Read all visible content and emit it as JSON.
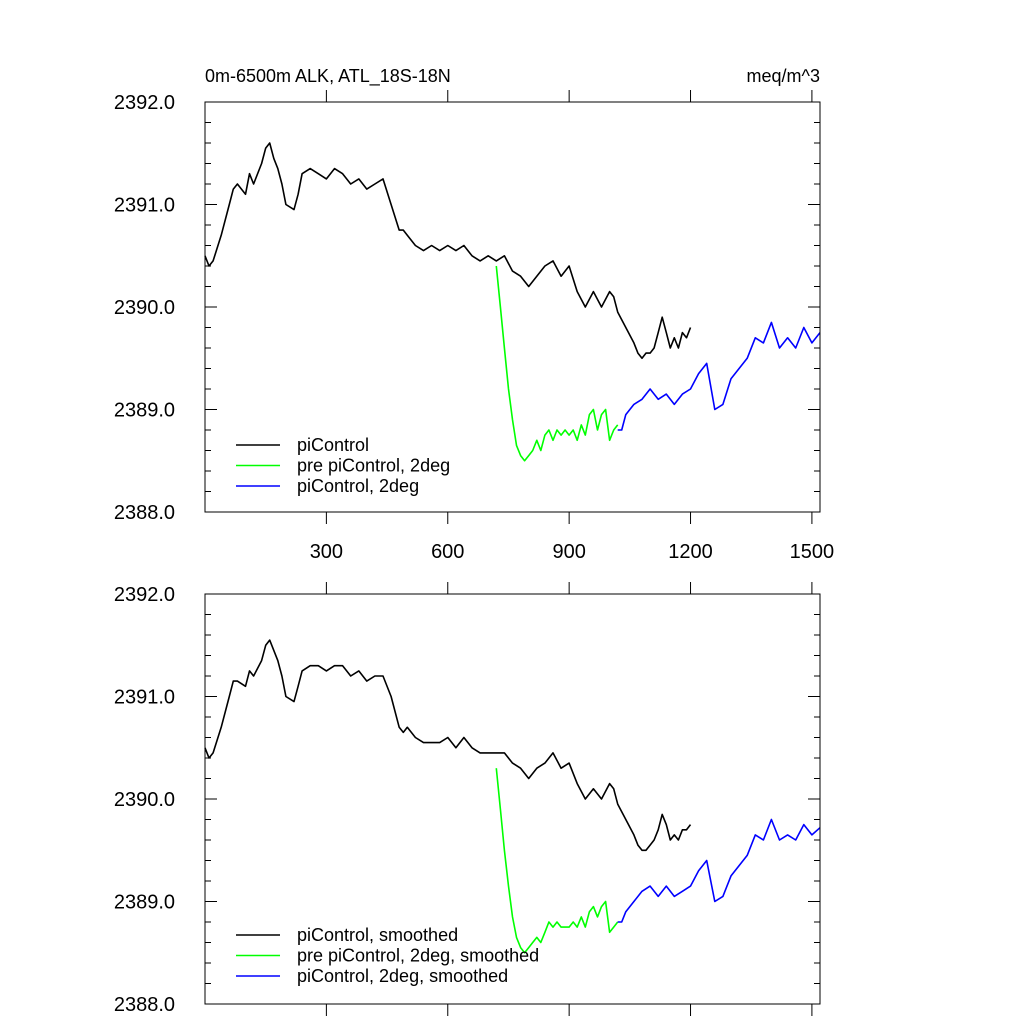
{
  "chart_data": [
    {
      "type": "line",
      "title_left": "0m-6500m ALK, ATL_18S-18N",
      "title_right": "meq/m^3",
      "xlim": [
        0,
        1520
      ],
      "ylim": [
        2388.0,
        2392.0
      ],
      "xticks": [
        300,
        600,
        900,
        1200,
        1500
      ],
      "xtick_labels": [
        "300",
        "600",
        "900",
        "1200",
        "1500"
      ],
      "yticks": [
        2388.0,
        2389.0,
        2390.0,
        2391.0,
        2392.0
      ],
      "ytick_labels": [
        "2388.0",
        "2389.0",
        "2390.0",
        "2391.0",
        "2392.0"
      ],
      "legend_position": "bottom-left",
      "series": [
        {
          "name": "piControl",
          "color": "#000000",
          "x": [
            0,
            10,
            20,
            40,
            60,
            70,
            80,
            100,
            110,
            120,
            140,
            150,
            160,
            170,
            180,
            190,
            200,
            220,
            230,
            240,
            260,
            280,
            300,
            320,
            340,
            360,
            380,
            400,
            420,
            440,
            460,
            480,
            490,
            500,
            520,
            540,
            560,
            580,
            600,
            620,
            640,
            660,
            680,
            700,
            720,
            740,
            760,
            780,
            800,
            820,
            840,
            860,
            880,
            900,
            920,
            940,
            960,
            980,
            1000,
            1010,
            1020,
            1040,
            1060,
            1070,
            1080,
            1090,
            1100,
            1110,
            1120,
            1130,
            1140,
            1150,
            1160,
            1170,
            1180,
            1190,
            1200
          ],
          "y": [
            2390.5,
            2390.4,
            2390.45,
            2390.7,
            2391.0,
            2391.15,
            2391.2,
            2391.1,
            2391.3,
            2391.2,
            2391.4,
            2391.55,
            2391.6,
            2391.45,
            2391.35,
            2391.2,
            2391.0,
            2390.95,
            2391.1,
            2391.3,
            2391.35,
            2391.3,
            2391.25,
            2391.35,
            2391.3,
            2391.2,
            2391.25,
            2391.15,
            2391.2,
            2391.25,
            2391.0,
            2390.75,
            2390.75,
            2390.7,
            2390.6,
            2390.55,
            2390.6,
            2390.55,
            2390.6,
            2390.55,
            2390.6,
            2390.5,
            2390.45,
            2390.5,
            2390.45,
            2390.5,
            2390.35,
            2390.3,
            2390.2,
            2390.3,
            2390.4,
            2390.45,
            2390.3,
            2390.4,
            2390.15,
            2390.0,
            2390.15,
            2390.0,
            2390.15,
            2390.1,
            2389.95,
            2389.8,
            2389.65,
            2389.55,
            2389.5,
            2389.55,
            2389.55,
            2389.6,
            2389.75,
            2389.9,
            2389.75,
            2389.6,
            2389.7,
            2389.6,
            2389.75,
            2389.7,
            2389.8
          ]
        },
        {
          "name": "pre piControl, 2deg",
          "color": "#00ff00",
          "x": [
            720,
            730,
            740,
            750,
            760,
            770,
            780,
            790,
            800,
            810,
            820,
            830,
            840,
            850,
            860,
            870,
            880,
            890,
            900,
            910,
            920,
            930,
            940,
            950,
            960,
            970,
            980,
            990,
            1000,
            1010,
            1020
          ],
          "y": [
            2390.4,
            2390.0,
            2389.6,
            2389.2,
            2388.9,
            2388.65,
            2388.55,
            2388.5,
            2388.55,
            2388.6,
            2388.7,
            2388.6,
            2388.75,
            2388.8,
            2388.7,
            2388.8,
            2388.75,
            2388.8,
            2388.75,
            2388.8,
            2388.7,
            2388.85,
            2388.75,
            2388.95,
            2389.0,
            2388.8,
            2388.95,
            2389.0,
            2388.7,
            2388.8,
            2388.85
          ]
        },
        {
          "name": "piControl, 2deg",
          "color": "#0000ff",
          "x": [
            1020,
            1030,
            1040,
            1060,
            1080,
            1100,
            1120,
            1140,
            1160,
            1180,
            1200,
            1220,
            1240,
            1260,
            1280,
            1300,
            1320,
            1340,
            1360,
            1380,
            1400,
            1420,
            1440,
            1460,
            1480,
            1500,
            1520
          ],
          "y": [
            2388.8,
            2388.8,
            2388.95,
            2389.05,
            2389.1,
            2389.2,
            2389.1,
            2389.15,
            2389.05,
            2389.15,
            2389.2,
            2389.35,
            2389.45,
            2389.0,
            2389.05,
            2389.3,
            2389.4,
            2389.5,
            2389.7,
            2389.65,
            2389.85,
            2389.6,
            2389.7,
            2389.6,
            2389.8,
            2389.65,
            2389.75
          ]
        }
      ]
    },
    {
      "type": "line",
      "xlim": [
        0,
        1520
      ],
      "ylim": [
        2388.0,
        2392.0
      ],
      "xticks": [
        300,
        600,
        900,
        1200,
        1500
      ],
      "yticks": [
        2388.0,
        2389.0,
        2390.0,
        2391.0,
        2392.0
      ],
      "ytick_labels": [
        "2388.0",
        "2389.0",
        "2390.0",
        "2391.0",
        "2392.0"
      ],
      "legend_position": "bottom-left",
      "series": [
        {
          "name": "piControl, smoothed",
          "color": "#000000",
          "x": [
            0,
            10,
            20,
            40,
            60,
            70,
            80,
            100,
            110,
            120,
            140,
            150,
            160,
            170,
            180,
            190,
            200,
            220,
            230,
            240,
            260,
            280,
            300,
            320,
            340,
            360,
            380,
            400,
            420,
            440,
            460,
            480,
            490,
            500,
            520,
            540,
            560,
            580,
            600,
            620,
            640,
            660,
            680,
            700,
            720,
            740,
            760,
            780,
            800,
            820,
            840,
            860,
            880,
            900,
            920,
            940,
            960,
            980,
            1000,
            1010,
            1020,
            1040,
            1060,
            1070,
            1080,
            1090,
            1100,
            1110,
            1120,
            1130,
            1140,
            1150,
            1160,
            1170,
            1180,
            1190,
            1200
          ],
          "y": [
            2390.5,
            2390.4,
            2390.45,
            2390.7,
            2391.0,
            2391.15,
            2391.15,
            2391.1,
            2391.25,
            2391.2,
            2391.35,
            2391.5,
            2391.55,
            2391.45,
            2391.35,
            2391.2,
            2391.0,
            2390.95,
            2391.1,
            2391.25,
            2391.3,
            2391.3,
            2391.25,
            2391.3,
            2391.3,
            2391.2,
            2391.25,
            2391.15,
            2391.2,
            2391.2,
            2391.0,
            2390.7,
            2390.65,
            2390.7,
            2390.6,
            2390.55,
            2390.55,
            2390.55,
            2390.6,
            2390.5,
            2390.6,
            2390.5,
            2390.45,
            2390.45,
            2390.45,
            2390.45,
            2390.35,
            2390.3,
            2390.2,
            2390.3,
            2390.35,
            2390.45,
            2390.3,
            2390.35,
            2390.15,
            2390.0,
            2390.1,
            2390.0,
            2390.15,
            2390.1,
            2389.95,
            2389.8,
            2389.65,
            2389.55,
            2389.5,
            2389.5,
            2389.55,
            2389.6,
            2389.7,
            2389.85,
            2389.75,
            2389.6,
            2389.65,
            2389.6,
            2389.7,
            2389.7,
            2389.75
          ]
        },
        {
          "name": "pre piControl, 2deg, smoothed",
          "color": "#00ff00",
          "x": [
            720,
            730,
            740,
            750,
            760,
            770,
            780,
            790,
            800,
            810,
            820,
            830,
            840,
            850,
            860,
            870,
            880,
            890,
            900,
            910,
            920,
            930,
            940,
            950,
            960,
            970,
            980,
            990,
            1000,
            1010,
            1020
          ],
          "y": [
            2390.3,
            2389.9,
            2389.5,
            2389.15,
            2388.85,
            2388.65,
            2388.55,
            2388.5,
            2388.55,
            2388.6,
            2388.65,
            2388.6,
            2388.7,
            2388.8,
            2388.75,
            2388.8,
            2388.75,
            2388.75,
            2388.75,
            2388.8,
            2388.75,
            2388.85,
            2388.75,
            2388.9,
            2388.95,
            2388.85,
            2388.95,
            2389.0,
            2388.7,
            2388.75,
            2388.8
          ]
        },
        {
          "name": "piControl, 2deg, smoothed",
          "color": "#0000ff",
          "x": [
            1020,
            1030,
            1040,
            1060,
            1080,
            1100,
            1120,
            1140,
            1160,
            1180,
            1200,
            1220,
            1240,
            1260,
            1280,
            1300,
            1320,
            1340,
            1360,
            1380,
            1400,
            1420,
            1440,
            1460,
            1480,
            1500,
            1520
          ],
          "y": [
            2388.8,
            2388.8,
            2388.9,
            2389.0,
            2389.1,
            2389.15,
            2389.05,
            2389.15,
            2389.05,
            2389.1,
            2389.15,
            2389.3,
            2389.4,
            2389.0,
            2389.05,
            2389.25,
            2389.35,
            2389.45,
            2389.65,
            2389.6,
            2389.8,
            2389.6,
            2389.65,
            2389.6,
            2389.75,
            2389.65,
            2389.72
          ]
        }
      ]
    }
  ]
}
